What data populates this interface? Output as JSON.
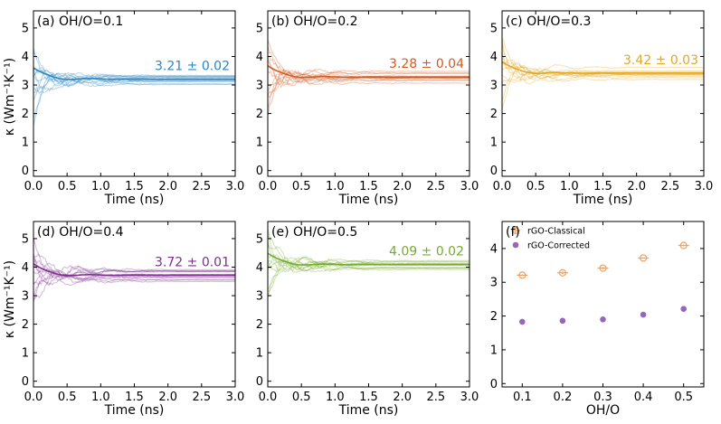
{
  "figure": {
    "ylabel": "κ (Wm⁻¹K⁻¹)",
    "xlabel": "Time (ns)"
  },
  "chart_data": [
    {
      "type": "line",
      "panel": "a",
      "title": "(a) OH/O=0.1",
      "color": "#2a86c4",
      "annotation": "3.21 ± 0.02",
      "converged_value": 3.21,
      "uncertainty": 0.02,
      "xlabel": "Time (ns)",
      "ylabel": "κ (Wm⁻¹K⁻¹)",
      "xlim": [
        0,
        3.0
      ],
      "ylim": [
        -0.2,
        5.6
      ],
      "xticks": [
        "0.0",
        "0.5",
        "1.0",
        "1.5",
        "2.0",
        "2.5",
        "3.0"
      ],
      "yticks": [
        "0",
        "1",
        "2",
        "3",
        "4",
        "5"
      ],
      "series_description": "running average of thermal conductivity for multiple runs converging to dashed mean"
    },
    {
      "type": "line",
      "panel": "b",
      "title": "(b) OH/O=0.2",
      "color": "#d35a20",
      "annotation": "3.28 ± 0.04",
      "converged_value": 3.28,
      "uncertainty": 0.04,
      "xlabel": "Time (ns)",
      "xlim": [
        0,
        3.0
      ],
      "ylim": [
        -0.2,
        5.6
      ],
      "xticks": [
        "0.0",
        "0.5",
        "1.0",
        "1.5",
        "2.0",
        "2.5",
        "3.0"
      ],
      "yticks": [
        "0",
        "1",
        "2",
        "3",
        "4",
        "5"
      ]
    },
    {
      "type": "line",
      "panel": "c",
      "title": "(c) OH/O=0.3",
      "color": "#e3a823",
      "annotation": "3.42 ± 0.03",
      "converged_value": 3.42,
      "uncertainty": 0.03,
      "xlabel": "Time (ns)",
      "xlim": [
        0,
        3.0
      ],
      "ylim": [
        -0.2,
        5.6
      ],
      "xticks": [
        "0.0",
        "0.5",
        "1.0",
        "1.5",
        "2.0",
        "2.5",
        "3.0"
      ],
      "yticks": [
        "0",
        "1",
        "2",
        "3",
        "4",
        "5"
      ]
    },
    {
      "type": "line",
      "panel": "d",
      "title": "(d) OH/O=0.4",
      "color": "#7e2e8e",
      "annotation": "3.72 ± 0.01",
      "converged_value": 3.72,
      "uncertainty": 0.01,
      "xlabel": "Time (ns)",
      "ylabel": "κ (Wm⁻¹K⁻¹)",
      "xlim": [
        0,
        3.0
      ],
      "ylim": [
        -0.2,
        5.6
      ],
      "xticks": [
        "0.0",
        "0.5",
        "1.0",
        "1.5",
        "2.0",
        "2.5",
        "3.0"
      ],
      "yticks": [
        "0",
        "1",
        "2",
        "3",
        "4",
        "5"
      ]
    },
    {
      "type": "line",
      "panel": "e",
      "title": "(e) OH/O=0.5",
      "color": "#76ab30",
      "annotation": "4.09 ± 0.02",
      "converged_value": 4.09,
      "uncertainty": 0.02,
      "xlabel": "Time (ns)",
      "xlim": [
        0,
        3.0
      ],
      "ylim": [
        -0.2,
        5.6
      ],
      "xticks": [
        "0.0",
        "0.5",
        "1.0",
        "1.5",
        "2.0",
        "2.5",
        "3.0"
      ],
      "yticks": [
        "0",
        "1",
        "2",
        "3",
        "4",
        "5"
      ]
    },
    {
      "type": "scatter",
      "panel": "f",
      "title": "(f)",
      "xlabel": "OH/O",
      "xlim": [
        0.05,
        0.55
      ],
      "ylim": [
        -0.1,
        4.8
      ],
      "xticks": [
        "0.1",
        "0.2",
        "0.3",
        "0.4",
        "0.5"
      ],
      "yticks": [
        "0",
        "1",
        "2",
        "3",
        "4"
      ],
      "x": [
        0.1,
        0.2,
        0.3,
        0.4,
        0.5
      ],
      "series": [
        {
          "name": "rGO-Classical",
          "color": "#f0a060",
          "marker": "open-circle-errorbar",
          "values": [
            3.21,
            3.28,
            3.42,
            3.72,
            4.09
          ],
          "errors": [
            0.02,
            0.04,
            0.03,
            0.01,
            0.02
          ]
        },
        {
          "name": "rGO-Corrected",
          "color": "#9466bd",
          "marker": "filled-circle",
          "values": [
            1.83,
            1.86,
            1.9,
            2.04,
            2.21
          ]
        }
      ],
      "legend": "top-left"
    }
  ]
}
